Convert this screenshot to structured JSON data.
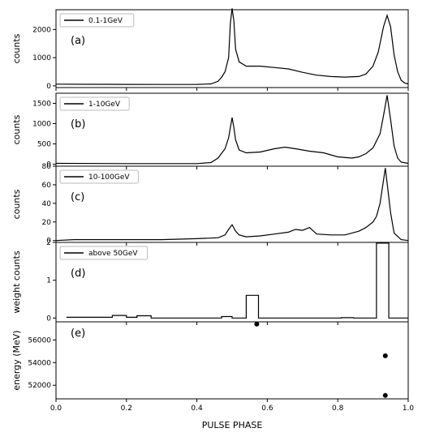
{
  "chart_data": {
    "type": "line",
    "xlabel": "PULSE PHASE",
    "xlim": [
      0.0,
      1.0
    ],
    "x_ticks": [
      "0.0",
      "0.2",
      "0.4",
      "0.6",
      "0.8",
      "1.0"
    ],
    "panels": [
      {
        "label": "(a)",
        "legend": "0.1-1GeV",
        "legend_position": "top-left",
        "ylabel": "counts",
        "ylim": [
          -60,
          2700
        ],
        "y_ticks": [
          0,
          1000,
          2000
        ],
        "y_tick_labels": [
          "0",
          "1000",
          "2000"
        ],
        "style": "line",
        "points": [
          [
            0.0,
            60
          ],
          [
            0.1,
            55
          ],
          [
            0.2,
            52
          ],
          [
            0.3,
            50
          ],
          [
            0.4,
            52
          ],
          [
            0.44,
            70
          ],
          [
            0.46,
            160
          ],
          [
            0.47,
            300
          ],
          [
            0.48,
            500
          ],
          [
            0.49,
            1000
          ],
          [
            0.495,
            2200
          ],
          [
            0.5,
            2750
          ],
          [
            0.505,
            2300
          ],
          [
            0.51,
            1300
          ],
          [
            0.52,
            850
          ],
          [
            0.54,
            700
          ],
          [
            0.58,
            700
          ],
          [
            0.62,
            650
          ],
          [
            0.66,
            600
          ],
          [
            0.7,
            480
          ],
          [
            0.74,
            380
          ],
          [
            0.78,
            330
          ],
          [
            0.82,
            310
          ],
          [
            0.86,
            330
          ],
          [
            0.88,
            420
          ],
          [
            0.9,
            700
          ],
          [
            0.915,
            1200
          ],
          [
            0.93,
            2100
          ],
          [
            0.94,
            2500
          ],
          [
            0.95,
            2100
          ],
          [
            0.96,
            1100
          ],
          [
            0.97,
            500
          ],
          [
            0.98,
            200
          ],
          [
            0.99,
            100
          ],
          [
            1.0,
            70
          ]
        ]
      },
      {
        "label": "(b)",
        "legend": "1-10GeV",
        "legend_position": "top-left",
        "ylabel": "counts",
        "ylim": [
          -50,
          1750
        ],
        "y_ticks": [
          0,
          500,
          1000,
          1500
        ],
        "y_tick_labels": [
          "0",
          "500",
          "1000",
          "1500"
        ],
        "style": "line",
        "points": [
          [
            0.0,
            20
          ],
          [
            0.2,
            15
          ],
          [
            0.4,
            15
          ],
          [
            0.44,
            40
          ],
          [
            0.46,
            150
          ],
          [
            0.48,
            380
          ],
          [
            0.49,
            650
          ],
          [
            0.5,
            1150
          ],
          [
            0.505,
            900
          ],
          [
            0.51,
            600
          ],
          [
            0.52,
            350
          ],
          [
            0.54,
            280
          ],
          [
            0.58,
            300
          ],
          [
            0.62,
            380
          ],
          [
            0.65,
            420
          ],
          [
            0.68,
            380
          ],
          [
            0.72,
            320
          ],
          [
            0.76,
            280
          ],
          [
            0.8,
            180
          ],
          [
            0.84,
            150
          ],
          [
            0.86,
            180
          ],
          [
            0.88,
            260
          ],
          [
            0.9,
            400
          ],
          [
            0.92,
            750
          ],
          [
            0.93,
            1200
          ],
          [
            0.94,
            1700
          ],
          [
            0.95,
            1100
          ],
          [
            0.96,
            450
          ],
          [
            0.97,
            150
          ],
          [
            0.98,
            50
          ],
          [
            1.0,
            20
          ]
        ]
      },
      {
        "label": "(c)",
        "legend": "10-100GeV",
        "legend_position": "top-left",
        "ylabel": "counts",
        "ylim": [
          -2,
          80
        ],
        "y_ticks": [
          0,
          20,
          40,
          60,
          80
        ],
        "y_tick_labels": [
          "0",
          "20",
          "40",
          "60",
          "80"
        ],
        "style": "line",
        "points": [
          [
            0.0,
            0
          ],
          [
            0.05,
            1
          ],
          [
            0.1,
            1
          ],
          [
            0.2,
            1
          ],
          [
            0.3,
            1
          ],
          [
            0.4,
            2
          ],
          [
            0.46,
            3
          ],
          [
            0.48,
            6
          ],
          [
            0.49,
            12
          ],
          [
            0.5,
            17
          ],
          [
            0.51,
            10
          ],
          [
            0.52,
            6
          ],
          [
            0.54,
            4
          ],
          [
            0.58,
            5
          ],
          [
            0.62,
            7
          ],
          [
            0.66,
            9
          ],
          [
            0.68,
            12
          ],
          [
            0.7,
            11
          ],
          [
            0.72,
            14
          ],
          [
            0.74,
            7
          ],
          [
            0.78,
            6
          ],
          [
            0.82,
            6
          ],
          [
            0.86,
            10
          ],
          [
            0.88,
            14
          ],
          [
            0.9,
            20
          ],
          [
            0.91,
            26
          ],
          [
            0.92,
            40
          ],
          [
            0.93,
            65
          ],
          [
            0.935,
            78
          ],
          [
            0.94,
            62
          ],
          [
            0.95,
            30
          ],
          [
            0.96,
            8
          ],
          [
            0.98,
            1
          ],
          [
            1.0,
            0
          ]
        ]
      },
      {
        "label": "(d)",
        "legend": "above 50GeV",
        "legend_position": "top-left",
        "ylabel": "weight counts",
        "ylim": [
          -0.1,
          2.0
        ],
        "y_ticks": [
          0,
          1,
          2
        ],
        "y_tick_labels": [
          "0",
          "1",
          "2"
        ],
        "style": "step",
        "bins": [
          [
            0.03,
            0.16,
            0.02
          ],
          [
            0.16,
            0.2,
            0.07
          ],
          [
            0.2,
            0.23,
            0.02
          ],
          [
            0.23,
            0.27,
            0.06
          ],
          [
            0.27,
            0.47,
            0.0
          ],
          [
            0.47,
            0.5,
            0.04
          ],
          [
            0.5,
            0.54,
            0.0
          ],
          [
            0.54,
            0.575,
            0.6
          ],
          [
            0.575,
            0.81,
            0.0
          ],
          [
            0.81,
            0.845,
            0.01
          ],
          [
            0.845,
            0.91,
            0.0
          ],
          [
            0.91,
            0.945,
            1.98
          ],
          [
            0.945,
            1.0,
            0.0
          ]
        ]
      },
      {
        "label": "(e)",
        "ylabel": "energy (MeV)",
        "ylim": [
          50800,
          57600
        ],
        "y_ticks": [
          52000,
          54000,
          56000
        ],
        "y_tick_labels": [
          "52000",
          "54000",
          "56000"
        ],
        "style": "scatter",
        "points": [
          [
            0.57,
            57400
          ],
          [
            0.935,
            54600
          ],
          [
            0.935,
            51100
          ]
        ]
      }
    ]
  }
}
